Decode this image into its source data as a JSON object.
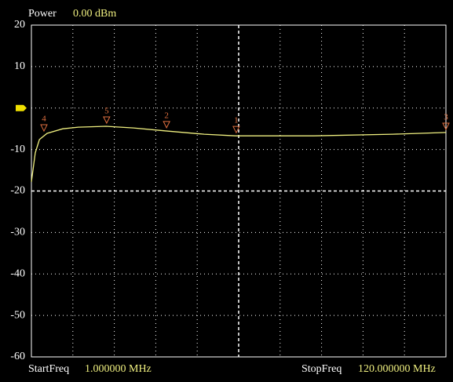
{
  "chart_data": {
    "type": "line",
    "power_label": "Power",
    "power": {
      "value": 0,
      "label": "0.00 dBm"
    },
    "start_label": "StartFreq",
    "start_text": "1.000000 MHz",
    "stop_label": "StopFreq",
    "stop_text": "120.000000 MHz",
    "xlim": [
      1,
      120
    ],
    "ylim": [
      -60,
      20
    ],
    "yticks": [
      20,
      10,
      -10,
      -20,
      -30,
      -40,
      -50,
      -60
    ],
    "grid": true,
    "series": [
      {
        "color": "#f0f080",
        "x": [
          1,
          2.1,
          3.3,
          5.5,
          10,
          14.5,
          22.4,
          30.3,
          39.3,
          50.6,
          59.6,
          82.1,
          104.7,
          120
        ],
        "values": [
          -17.8,
          -10.8,
          -7.6,
          -6.1,
          -5.0,
          -4.6,
          -4.4,
          -4.8,
          -5.5,
          -6.3,
          -6.7,
          -6.7,
          -6.3,
          -5.9
        ]
      }
    ],
    "marker_color": "#e07040",
    "markers": [
      {
        "label": "1",
        "x": 59.8,
        "value": -6.7
      },
      {
        "label": "2",
        "x": 39.8,
        "value": -5.5
      },
      {
        "label": "3",
        "x": 120,
        "value": -5.9
      },
      {
        "label": "4",
        "x": 4.6,
        "value": -6.3
      },
      {
        "label": "5",
        "x": 22.6,
        "value": -4.4
      }
    ]
  }
}
